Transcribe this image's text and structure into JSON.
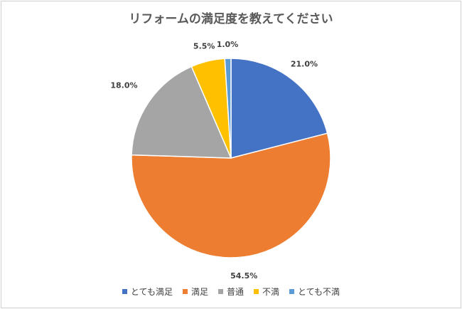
{
  "chart_data": {
    "type": "pie",
    "title": "リフォームの満足度を教えてください",
    "categories": [
      "とても満足",
      "満足",
      "普通",
      "不満",
      "とても不満"
    ],
    "values": [
      21.0,
      54.5,
      18.0,
      5.5,
      1.0
    ],
    "data_labels": [
      "21.0%",
      "54.5%",
      "18.0%",
      "5.5%",
      "1.0%"
    ],
    "colors": [
      "#4472C4",
      "#ED7D31",
      "#A5A5A5",
      "#FFC000",
      "#5B9BD5"
    ],
    "start_angle": "top, clockwise",
    "legend_position": "bottom"
  }
}
